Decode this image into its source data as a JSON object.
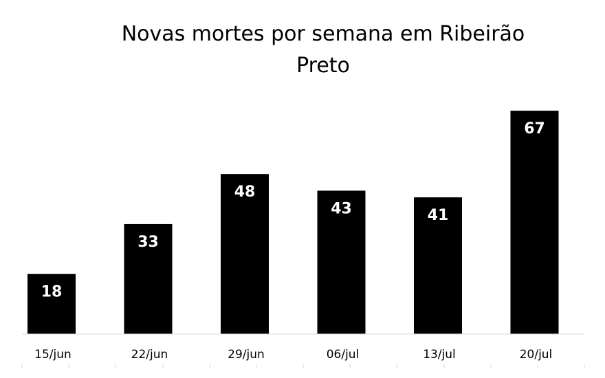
{
  "chart_data": {
    "type": "bar",
    "title_lines": [
      "Novas mortes por semana em Ribeirão",
      "Preto"
    ],
    "categories": [
      "15/jun",
      "22/jun",
      "29/jun",
      "06/jul",
      "13/jul",
      "20/jul"
    ],
    "values": [
      18,
      33,
      48,
      43,
      41,
      67
    ],
    "ylim": [
      0,
      70
    ],
    "grid": false,
    "data_labels": true,
    "bar_color": "#000000",
    "label_color": "#ffffff",
    "axis_color": "#d9d9d9"
  }
}
